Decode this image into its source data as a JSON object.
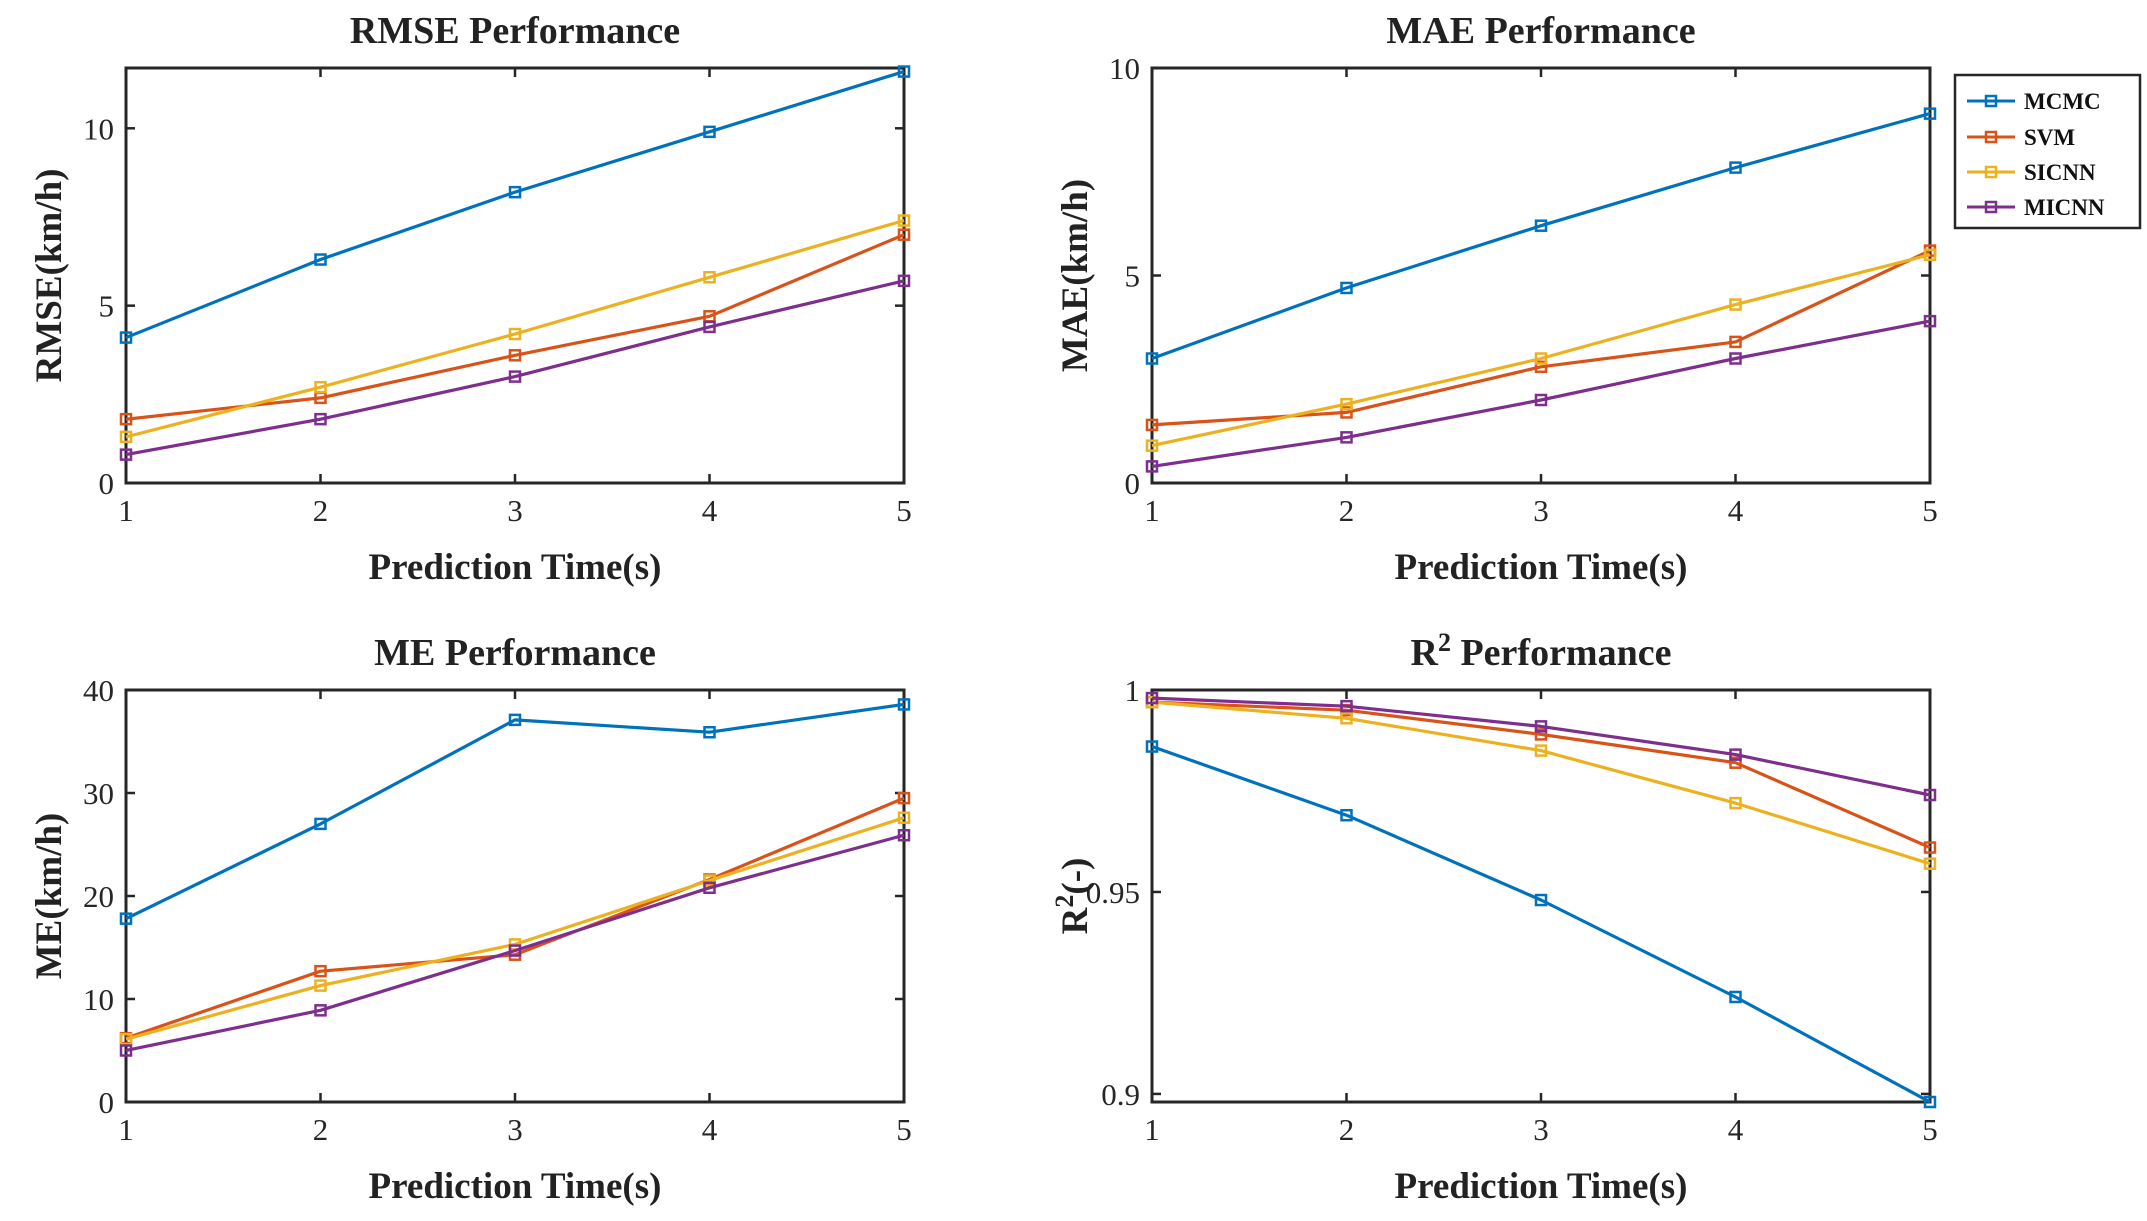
{
  "legend": {
    "entries": [
      "MCMC",
      "SVM",
      "SICNN",
      "MICNN"
    ],
    "colors": [
      "#0072BD",
      "#D95319",
      "#EDB120",
      "#7E2F8E"
    ]
  },
  "chart_data": [
    {
      "type": "line",
      "title": "RMSE Performance",
      "xlabel": "Prediction Time(s)",
      "ylabel": "RMSE(km/h)",
      "x": [
        1,
        2,
        3,
        4,
        5
      ],
      "xlim": [
        1,
        5
      ],
      "ylim": [
        0,
        11.7
      ],
      "yticks": [
        0,
        5,
        10
      ],
      "ytick_labels": [
        "0",
        "5",
        "10"
      ],
      "series": [
        {
          "name": "MCMC",
          "values": [
            4.1,
            6.3,
            8.2,
            9.9,
            11.6
          ]
        },
        {
          "name": "SVM",
          "values": [
            1.8,
            2.4,
            3.6,
            4.7,
            7.0
          ]
        },
        {
          "name": "SICNN",
          "values": [
            1.3,
            2.7,
            4.2,
            5.8,
            7.4
          ]
        },
        {
          "name": "MICNN",
          "values": [
            0.8,
            1.8,
            3.0,
            4.4,
            5.7
          ]
        }
      ]
    },
    {
      "type": "line",
      "title": "MAE Performance",
      "xlabel": "Prediction Time(s)",
      "ylabel": "MAE(km/h)",
      "x": [
        1,
        2,
        3,
        4,
        5
      ],
      "xlim": [
        1,
        5
      ],
      "ylim": [
        0,
        10
      ],
      "yticks": [
        0,
        5,
        10
      ],
      "ytick_labels": [
        "0",
        "5",
        "10"
      ],
      "series": [
        {
          "name": "MCMC",
          "values": [
            3.0,
            4.7,
            6.2,
            7.6,
            8.9
          ]
        },
        {
          "name": "SVM",
          "values": [
            1.4,
            1.7,
            2.8,
            3.4,
            5.6
          ]
        },
        {
          "name": "SICNN",
          "values": [
            0.9,
            1.9,
            3.0,
            4.3,
            5.5
          ]
        },
        {
          "name": "MICNN",
          "values": [
            0.4,
            1.1,
            2.0,
            3.0,
            3.9
          ]
        }
      ]
    },
    {
      "type": "line",
      "title": "ME Performance",
      "xlabel": "Prediction Time(s)",
      "ylabel": "ME(km/h)",
      "x": [
        1,
        2,
        3,
        4,
        5
      ],
      "xlim": [
        1,
        5
      ],
      "ylim": [
        0,
        40
      ],
      "yticks": [
        0,
        10,
        20,
        30,
        40
      ],
      "ytick_labels": [
        "0",
        "10",
        "20",
        "30",
        "40"
      ],
      "series": [
        {
          "name": "MCMC",
          "values": [
            17.8,
            27.0,
            37.1,
            35.9,
            38.6
          ]
        },
        {
          "name": "SVM",
          "values": [
            6.2,
            12.7,
            14.3,
            21.6,
            29.5
          ]
        },
        {
          "name": "SICNN",
          "values": [
            6.1,
            11.3,
            15.3,
            21.5,
            27.6
          ]
        },
        {
          "name": "MICNN",
          "values": [
            5.0,
            8.9,
            14.7,
            20.8,
            25.9
          ]
        }
      ]
    },
    {
      "type": "line",
      "title": "R",
      "title_sup": "2",
      "title_rest": " Performance",
      "xlabel": "Prediction Time(s)",
      "ylabel": "R",
      "ylabel_sup": "2",
      "ylabel_rest": "(-)",
      "x": [
        1,
        2,
        3,
        4,
        5
      ],
      "xlim": [
        1,
        5
      ],
      "ylim": [
        0.898,
        1.0
      ],
      "yticks": [
        0.9,
        0.95,
        1.0
      ],
      "ytick_labels": [
        "0.9",
        "0.95",
        "1"
      ],
      "series": [
        {
          "name": "MCMC",
          "values": [
            0.986,
            0.969,
            0.948,
            0.924,
            0.898
          ]
        },
        {
          "name": "SVM",
          "values": [
            0.997,
            0.995,
            0.989,
            0.982,
            0.961
          ]
        },
        {
          "name": "SICNN",
          "values": [
            0.997,
            0.993,
            0.985,
            0.972,
            0.957
          ]
        },
        {
          "name": "MICNN",
          "values": [
            0.998,
            0.996,
            0.991,
            0.984,
            0.974
          ]
        }
      ]
    }
  ],
  "x_tick_labels": [
    "1",
    "2",
    "3",
    "4",
    "5"
  ]
}
